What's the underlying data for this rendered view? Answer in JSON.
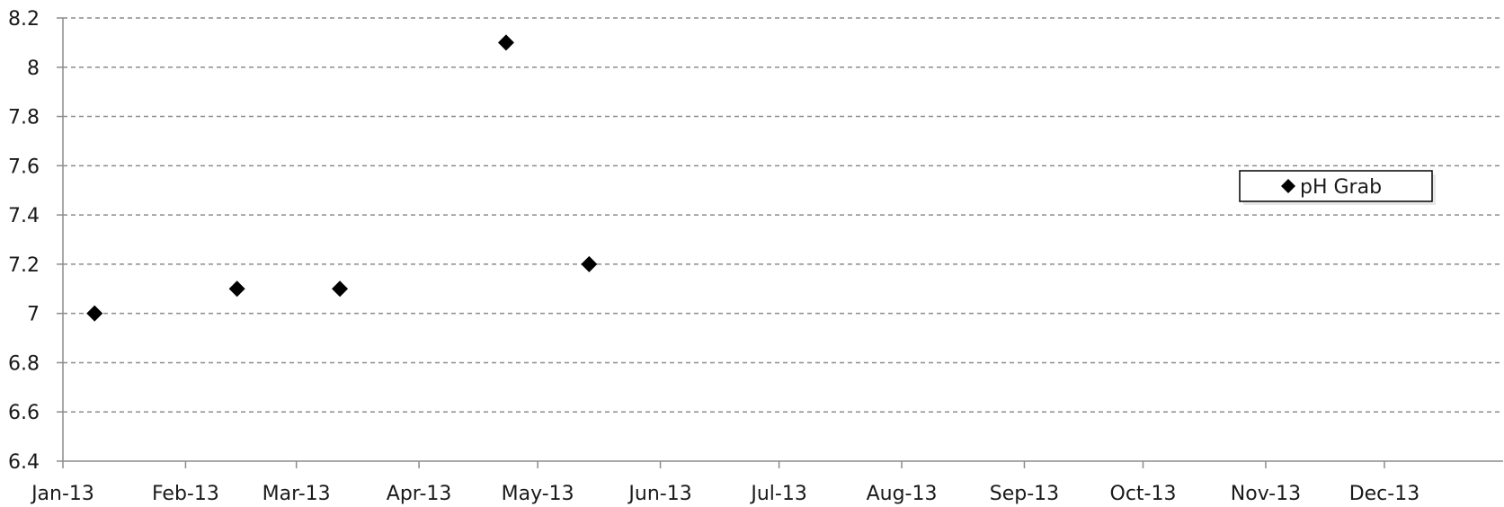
{
  "chart_data": {
    "type": "scatter",
    "x_axis_type": "date",
    "y_tick_labels": [
      "6.4",
      "6.6",
      "6.8",
      "7",
      "7.2",
      "7.4",
      "7.6",
      "7.8",
      "8",
      "8.2"
    ],
    "x_tick_labels": [
      "Jan-13",
      "Feb-13",
      "Mar-13",
      "Apr-13",
      "May-13",
      "Jun-13",
      "Jul-13",
      "Aug-13",
      "Sep-13",
      "Oct-13",
      "Nov-13",
      "Dec-13"
    ],
    "ylim": [
      6.4,
      8.2
    ],
    "xlim": [
      "2013-01-01",
      "2013-12-31"
    ],
    "grid": "horizontal dashed",
    "legend_position": "right",
    "series": [
      {
        "name": "pH Grab",
        "marker": "diamond",
        "color": "#000000",
        "points": [
          {
            "x": "2013-01-09",
            "y": 7.0
          },
          {
            "x": "2013-02-14",
            "y": 7.1
          },
          {
            "x": "2013-03-12",
            "y": 7.1
          },
          {
            "x": "2013-04-23",
            "y": 8.1
          },
          {
            "x": "2013-05-14",
            "y": 7.2
          }
        ]
      }
    ]
  }
}
